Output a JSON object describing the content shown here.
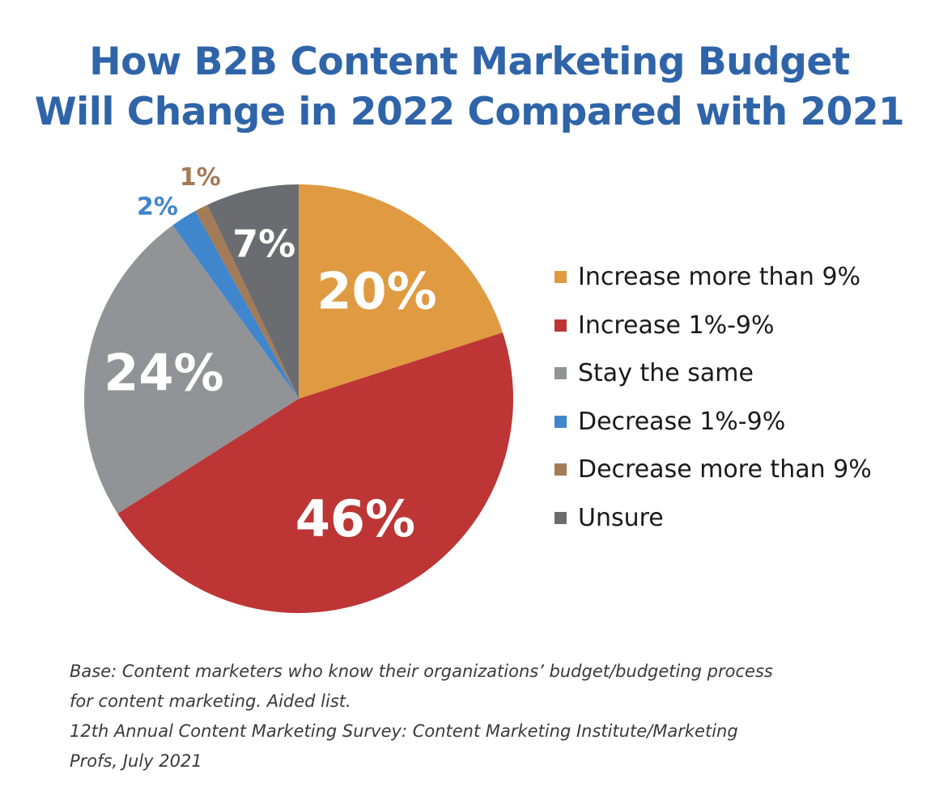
{
  "title_lines": [
    "How B2B Content Marketing Budget",
    "Will Change in 2022 Compared with 2021"
  ],
  "chart_data": {
    "type": "pie",
    "title": "How B2B Content Marketing Budget Will Change in 2022 Compared with 2021",
    "start_angle": "12 o'clock",
    "direction": "clockwise",
    "legend_position": "right",
    "slices": [
      {
        "label": "Increase more than 9%",
        "value": 20,
        "display": "20%",
        "color": "#e09a41",
        "label_color": "#ffffff",
        "label_placement": "inside"
      },
      {
        "label": "Increase 1%-9%",
        "value": 46,
        "display": "46%",
        "color": "#bd3535",
        "label_color": "#ffffff",
        "label_placement": "inside"
      },
      {
        "label": "Stay the same",
        "value": 24,
        "display": "24%",
        "color": "#929396",
        "label_color": "#ffffff",
        "label_placement": "inside"
      },
      {
        "label": "Decrease 1%-9%",
        "value": 2,
        "display": "2%",
        "color": "#3f86cc",
        "label_color": "#3f86cc",
        "label_placement": "outside"
      },
      {
        "label": "Decrease more than 9%",
        "value": 1,
        "display": "1%",
        "color": "#a47b57",
        "label_color": "#a47b57",
        "label_placement": "outside"
      },
      {
        "label": "Unsure",
        "value": 7,
        "display": "7%",
        "color": "#6b6c70",
        "label_color": "#ffffff",
        "label_placement": "inside"
      }
    ]
  },
  "footnote_lines": [
    "Base: Content marketers who know their organizations’ budget/budgeting process",
    "for content marketing. Aided list.",
    "12th Annual Content Marketing Survey: Content Marketing Institute/Marketing",
    "Profs, July 2021"
  ]
}
